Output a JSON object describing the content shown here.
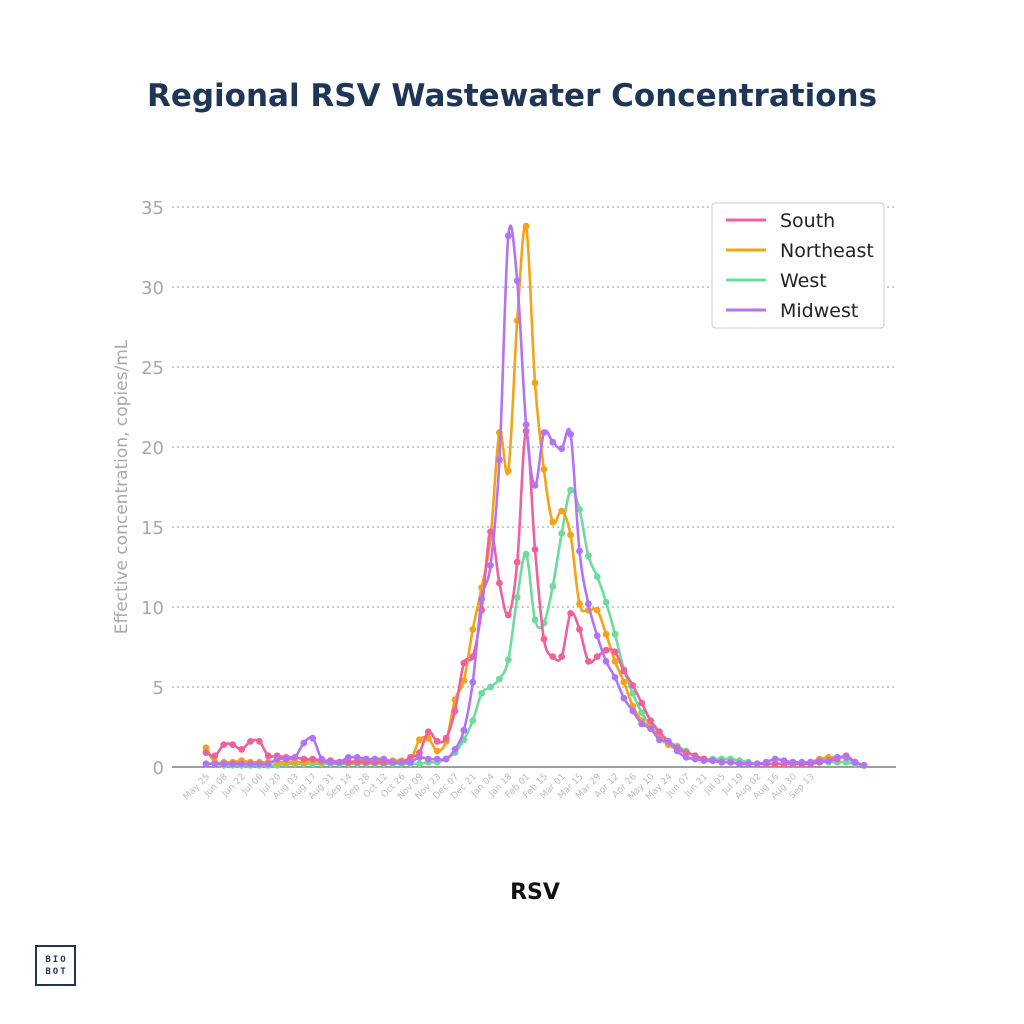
{
  "title": "Regional RSV Wastewater Concentrations",
  "xlabel": "RSV",
  "ylabel": "Effective concentration, copies/mL",
  "logo": {
    "line1": "BIO",
    "line2": "BOT"
  },
  "chart_data": {
    "type": "line",
    "title": "Regional RSV Wastewater Concentrations",
    "xlabel": "RSV",
    "ylabel": "Effective concentration, copies/mL",
    "ylim": [
      0,
      35
    ],
    "yticks": [
      0,
      5,
      10,
      15,
      20,
      25,
      30,
      35
    ],
    "grid": "horizontal dotted",
    "legend_position": "top-right",
    "xtick_labels": [
      "May 25",
      "Jun 08",
      "Jun 22",
      "Jul 06",
      "Jul 20",
      "Aug 03",
      "Aug 17",
      "Aug 31",
      "Sep 14",
      "Sep 28",
      "Oct 12",
      "Oct 26",
      "Nov 09",
      "Nov 23",
      "Dec 07",
      "Dec 21",
      "Jan 04",
      "Jan 18",
      "Feb 01",
      "Feb 15",
      "Mar 01",
      "Mar 15",
      "Mar 29",
      "Apr 12",
      "Apr 26",
      "May 10",
      "May 24",
      "Jun 07",
      "Jun 21",
      "Jul 05",
      "Jul 19",
      "Aug 02",
      "Aug 16",
      "Aug 30",
      "Sep 13"
    ],
    "series": [
      {
        "name": "South",
        "color": "#f0609a",
        "values": [
          0.9,
          0.7,
          1.4,
          1.4,
          1.1,
          1.6,
          1.6,
          0.7,
          0.7,
          0.6,
          0.6,
          0.5,
          0.5,
          0.4,
          0.4,
          0.3,
          0.3,
          0.3,
          0.3,
          0.3,
          0.3,
          0.3,
          0.3,
          0.6,
          0.9,
          2.2,
          1.6,
          1.8,
          3.5,
          6.5,
          6.9,
          9.8,
          14.7,
          11.5,
          9.5,
          12.8,
          21.0,
          13.6,
          8.0,
          6.9,
          6.9,
          9.6,
          8.6,
          6.6,
          6.9,
          7.3,
          7.2,
          6.0,
          5.1,
          4.0,
          2.9,
          2.2,
          1.6,
          1.2,
          0.9,
          0.7,
          0.5,
          0.4,
          0.3,
          0.3,
          0.2,
          0.2,
          0.2,
          0.2,
          0.2,
          0.2,
          0.2,
          0.2,
          0.2,
          0.3,
          0.4,
          0.5,
          0.7,
          0.3,
          0.1
        ]
      },
      {
        "name": "Northeast",
        "color": "#f5a316",
        "values": [
          1.2,
          0.3,
          0.3,
          0.3,
          0.4,
          0.3,
          0.3,
          0.3,
          0.3,
          0.3,
          0.3,
          0.3,
          0.4,
          0.3,
          0.3,
          0.3,
          0.3,
          0.4,
          0.4,
          0.4,
          0.4,
          0.4,
          0.4,
          0.4,
          1.7,
          1.8,
          1.0,
          1.6,
          4.2,
          5.4,
          8.6,
          11.2,
          14.3,
          20.9,
          18.5,
          27.9,
          33.8,
          24.0,
          18.6,
          15.3,
          16.0,
          14.5,
          10.2,
          9.8,
          9.8,
          8.3,
          6.6,
          5.3,
          3.8,
          2.9,
          2.5,
          1.8,
          1.4,
          1.1,
          0.9,
          0.7,
          0.5,
          0.4,
          0.3,
          0.3,
          0.2,
          0.2,
          0.2,
          0.2,
          0.2,
          0.2,
          0.2,
          0.2,
          0.3,
          0.5,
          0.6,
          0.6,
          0.6,
          0.3,
          0.1
        ]
      },
      {
        "name": "West",
        "color": "#6cdb9b",
        "values": [
          0.2,
          0.2,
          0.1,
          0.1,
          0.1,
          0.1,
          0.1,
          0.1,
          0.1,
          0.2,
          0.2,
          0.2,
          0.2,
          0.2,
          0.2,
          0.2,
          0.2,
          0.2,
          0.2,
          0.2,
          0.2,
          0.2,
          0.2,
          0.2,
          0.2,
          0.3,
          0.3,
          0.5,
          0.9,
          1.7,
          2.9,
          4.6,
          5.0,
          5.5,
          6.7,
          10.6,
          13.3,
          9.2,
          9.0,
          11.3,
          14.6,
          17.3,
          16.1,
          13.2,
          11.9,
          10.3,
          8.3,
          6.1,
          4.6,
          3.4,
          2.6,
          2.0,
          1.6,
          1.3,
          1.0,
          0.7,
          0.5,
          0.5,
          0.5,
          0.5,
          0.4,
          0.3,
          0.2,
          0.2,
          0.2,
          0.2,
          0.2,
          0.2,
          0.2,
          0.3,
          0.3,
          0.3,
          0.3,
          0.2,
          0.1
        ]
      },
      {
        "name": "Midwest",
        "color": "#b373f5",
        "values": [
          0.2,
          0.2,
          0.2,
          0.2,
          0.2,
          0.2,
          0.2,
          0.2,
          0.5,
          0.5,
          0.6,
          1.5,
          1.8,
          0.5,
          0.3,
          0.3,
          0.6,
          0.6,
          0.5,
          0.5,
          0.5,
          0.3,
          0.3,
          0.3,
          0.6,
          0.5,
          0.5,
          0.5,
          1.1,
          2.3,
          5.3,
          10.5,
          12.6,
          19.2,
          33.2,
          30.4,
          21.4,
          17.6,
          20.9,
          20.3,
          19.9,
          20.8,
          13.5,
          10.2,
          8.2,
          6.6,
          5.6,
          4.3,
          3.5,
          2.7,
          2.4,
          1.7,
          1.6,
          1.0,
          0.6,
          0.5,
          0.4,
          0.4,
          0.3,
          0.3,
          0.2,
          0.2,
          0.2,
          0.3,
          0.5,
          0.4,
          0.3,
          0.3,
          0.3,
          0.4,
          0.4,
          0.6,
          0.6,
          0.3,
          0.1
        ]
      }
    ]
  }
}
